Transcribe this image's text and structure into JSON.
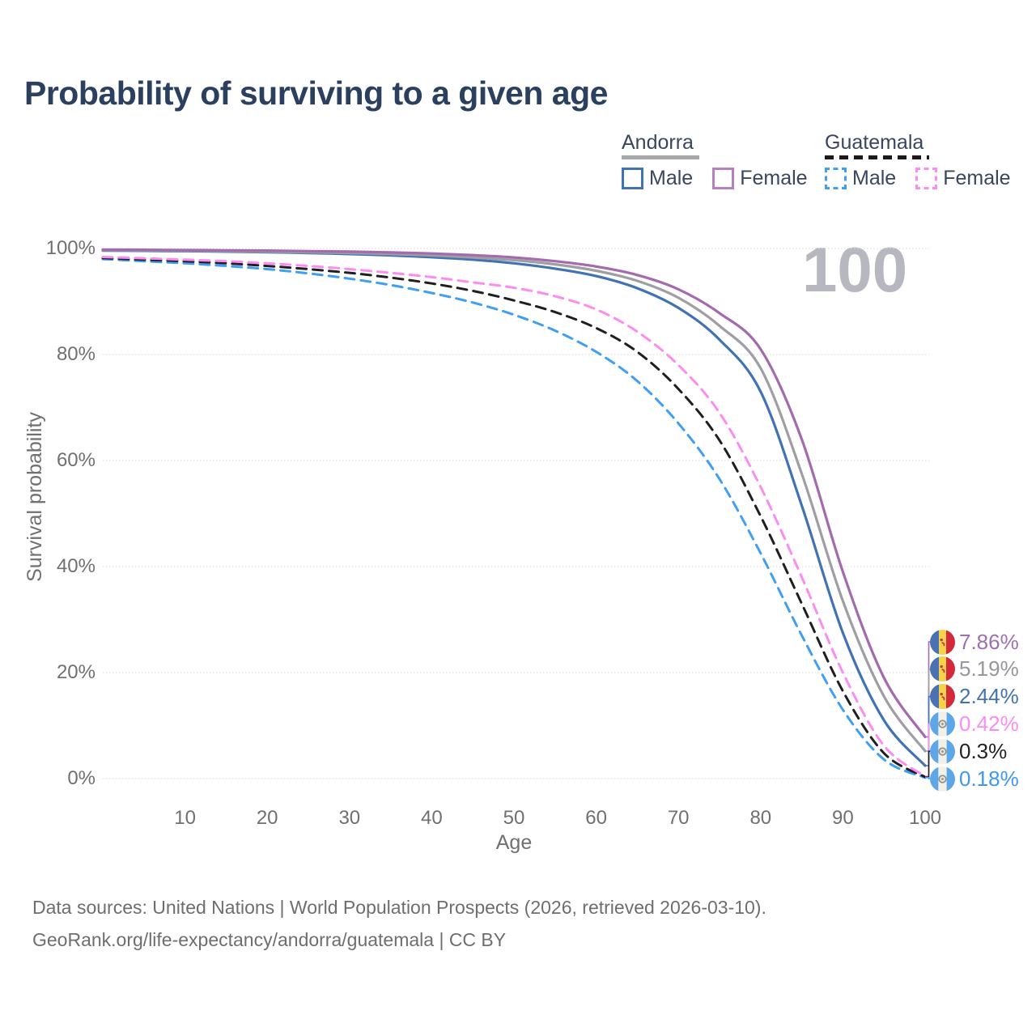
{
  "title": "Probability of surviving to a given age",
  "watermark_age": "100",
  "legend": {
    "groups": [
      {
        "country": "Andorra",
        "line_style": "solid",
        "underline_color": "#a8a8a8",
        "items": [
          {
            "label": "Male",
            "color": "#4173b4"
          },
          {
            "label": "Female",
            "color": "#b67fc0"
          }
        ]
      },
      {
        "country": "Guatemala",
        "line_style": "dashed",
        "underline_color": "#1b1b1b",
        "items": [
          {
            "label": "Male",
            "color": "#409ef3"
          },
          {
            "label": "Female",
            "color": "#fb8df0"
          }
        ]
      }
    ]
  },
  "chart_data": {
    "type": "line",
    "title": "Probability of surviving to a given age",
    "xlabel": "Age",
    "ylabel": "Survival probability",
    "xlim": [
      0,
      100
    ],
    "ylim": [
      0,
      100
    ],
    "x_ticks": [
      10,
      20,
      30,
      40,
      50,
      60,
      70,
      80,
      90,
      100
    ],
    "y_ticks": [
      0,
      20,
      40,
      60,
      80,
      100
    ],
    "y_tick_suffix": "%",
    "grid": true,
    "legend_position": "top-right",
    "x": [
      0,
      5,
      10,
      15,
      20,
      25,
      30,
      35,
      40,
      45,
      50,
      55,
      60,
      65,
      70,
      75,
      80,
      85,
      90,
      95,
      100
    ],
    "series": [
      {
        "id": "andorra-female",
        "country": "Andorra",
        "sex": "Female",
        "color": "#a46aae",
        "label_color": "#9f6fb0",
        "dash": "solid",
        "flag": "andorra",
        "end_label": "7.86%",
        "values": [
          99.8,
          99.75,
          99.7,
          99.65,
          99.6,
          99.5,
          99.4,
          99.25,
          99.05,
          98.75,
          98.3,
          97.6,
          96.6,
          95.0,
          92.3,
          87.8,
          81.0,
          64.0,
          39.0,
          19.0,
          7.86
        ]
      },
      {
        "id": "andorra-both",
        "country": "Andorra",
        "sex": "Both",
        "color": "#9e9ea3",
        "label_color": "#97979c",
        "dash": "solid",
        "flag": "andorra",
        "end_label": "5.19%",
        "values": [
          99.7,
          99.65,
          99.6,
          99.5,
          99.4,
          99.3,
          99.15,
          98.95,
          98.7,
          98.3,
          97.8,
          97.0,
          95.8,
          93.9,
          90.7,
          85.4,
          77.4,
          57.5,
          33.5,
          15.5,
          5.19
        ]
      },
      {
        "id": "andorra-male",
        "country": "Andorra",
        "sex": "Male",
        "color": "#4173b4",
        "label_color": "#4173b4",
        "dash": "solid",
        "flag": "andorra",
        "end_label": "2.44%",
        "values": [
          99.6,
          99.55,
          99.5,
          99.4,
          99.3,
          99.15,
          98.95,
          98.7,
          98.35,
          97.9,
          97.2,
          96.2,
          94.8,
          92.5,
          88.8,
          82.8,
          73.0,
          51.5,
          27.5,
          11.0,
          2.44
        ]
      },
      {
        "id": "guatemala-female",
        "country": "Guatemala",
        "sex": "Female",
        "color": "#fb8df0",
        "label_color": "#fb8df0",
        "dash": "dashed",
        "flag": "guatemala",
        "end_label": "0.42%",
        "values": [
          98.4,
          98.15,
          97.9,
          97.6,
          97.2,
          96.7,
          96.1,
          95.4,
          94.6,
          93.6,
          92.6,
          91.0,
          88.5,
          84.3,
          78.0,
          69.0,
          55.0,
          38.0,
          20.0,
          6.2,
          0.42
        ]
      },
      {
        "id": "guatemala-both",
        "country": "Guatemala",
        "sex": "Both",
        "color": "#1f1f1f",
        "label_color": "#222222",
        "dash": "dashed",
        "flag": "guatemala",
        "end_label": "0.3%",
        "values": [
          98.2,
          97.9,
          97.6,
          97.2,
          96.7,
          96.1,
          95.4,
          94.5,
          93.4,
          92.0,
          90.2,
          88.0,
          85.0,
          80.5,
          73.5,
          63.8,
          49.5,
          33.0,
          16.5,
          4.8,
          0.3
        ]
      },
      {
        "id": "guatemala-male",
        "country": "Guatemala",
        "sex": "Male",
        "color": "#409ef3",
        "label_color": "#3f97ef",
        "dash": "dashed",
        "flag": "guatemala",
        "end_label": "0.18%",
        "values": [
          98.0,
          97.6,
          97.2,
          96.7,
          96.1,
          95.3,
          94.3,
          93.1,
          91.6,
          89.8,
          87.5,
          84.5,
          80.5,
          75.0,
          67.0,
          56.5,
          42.5,
          27.0,
          13.0,
          3.6,
          0.18
        ]
      }
    ]
  },
  "footer": {
    "line1": "Data sources: United Nations | World Population Prospects (2026, retrieved 2026-03-10).",
    "line2": "GeoRank.org/life-expectancy/andorra/guatemala | CC BY"
  }
}
